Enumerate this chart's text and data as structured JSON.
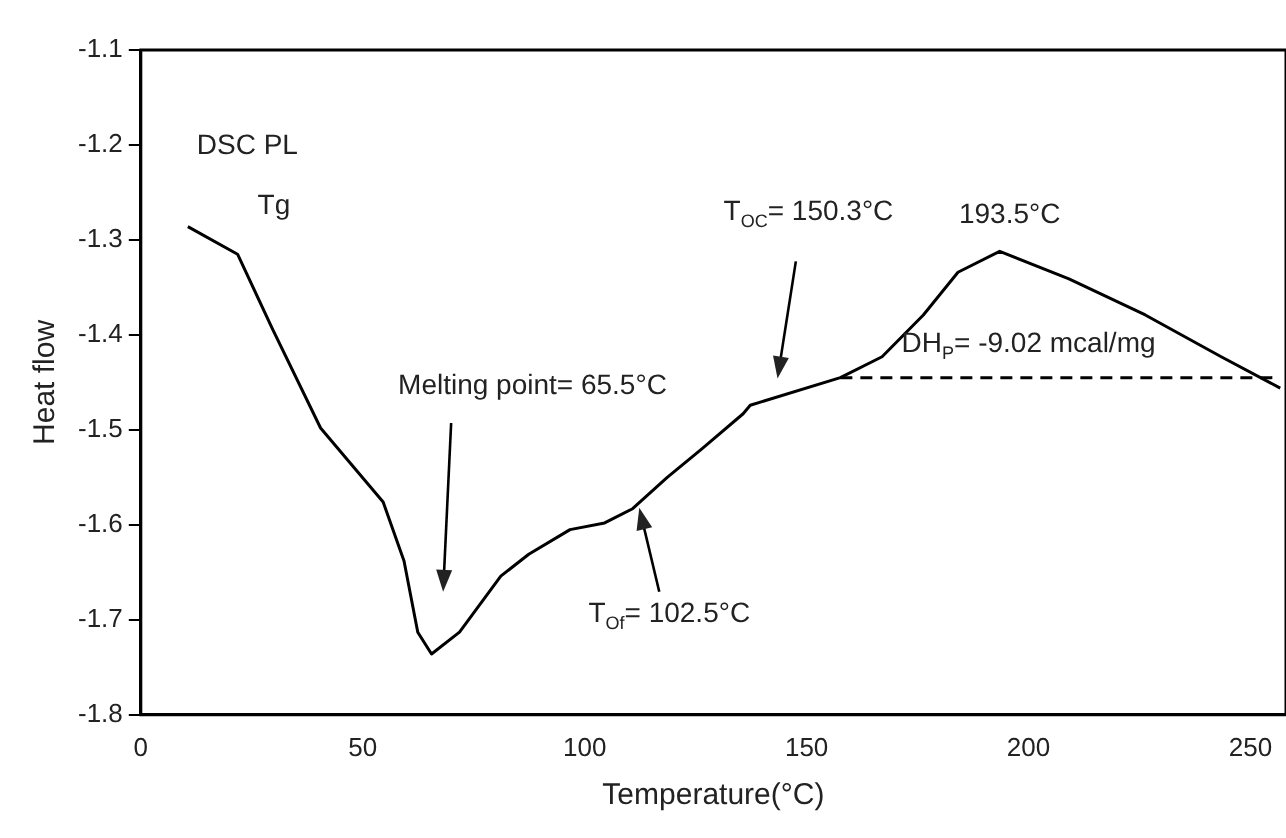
{
  "chart_data": {
    "type": "line",
    "title": "DSC PL",
    "xlabel": "Temperature(°C)",
    "ylabel": "Heat flow",
    "xlim": [
      0,
      258
    ],
    "xticks": [
      0,
      50,
      100,
      150,
      200,
      250
    ],
    "ylim": [
      -1.8,
      -1.1
    ],
    "yticks": [
      -1.8,
      -1.7,
      -1.6,
      -1.5,
      -1.4,
      -1.3,
      -1.2,
      -1.1
    ],
    "grid": false,
    "legend": false,
    "marker": "none",
    "series": [
      {
        "color": "#000000",
        "line_style": "solid",
        "x": [
          10.6,
          21.8,
          29.6,
          40.5,
          54.6,
          59.3,
          62.4,
          65.5,
          71.8,
          81.1,
          87.4,
          96.7,
          104.5,
          110.8,
          118.6,
          126.4,
          135.7,
          137.3,
          157.6,
          167,
          176.3,
          184.1,
          193.5,
          209.1,
          226.3,
          243.4,
          256.7
        ],
        "values": [
          -1.286,
          -1.315,
          -1.393,
          -1.498,
          -1.576,
          -1.638,
          -1.713,
          -1.736,
          -1.713,
          -1.654,
          -1.631,
          -1.605,
          -1.598,
          -1.583,
          -1.55,
          -1.52,
          -1.483,
          -1.474,
          -1.445,
          -1.423,
          -1.379,
          -1.334,
          -1.312,
          -1.341,
          -1.379,
          -1.423,
          -1.456
        ]
      },
      {
        "color": "#000000",
        "line_style": "dashed",
        "x": [
          157.6,
          256.7
        ],
        "values": [
          -1.445,
          -1.445
        ]
      }
    ],
    "annotations": [
      {
        "text": "Tg",
        "x": 21.8,
        "y": -1.315
      },
      "Melting point= 65.5°C",
      {
        "text": "T$_{Of}$= 102.5°C",
        "x": 112.3,
        "y": -1.582
      },
      "T$_{OC}$= 150.3°C",
      {
        "text": "193.5°C",
        "x": 193.5,
        "y": -1.312
      },
      {
        "text": "DH$_{P}$= -9.02 mcal/mg",
        "x": 200,
        "y": -1.445
      }
    ]
  }
}
